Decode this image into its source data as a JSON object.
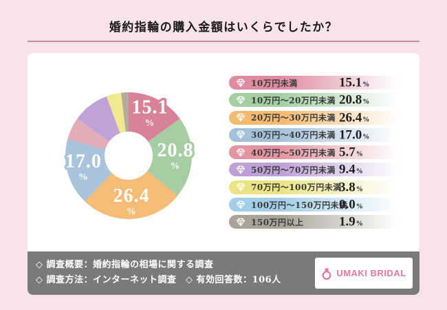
{
  "header": {
    "title": "婚約指輪の購入金額はいくらでしたか？"
  },
  "chart_data": {
    "type": "pie",
    "subtype": "donut",
    "title": "婚約指輪の購入金額はいくらでしたか？",
    "unit": "%",
    "start_angle_deg": 0,
    "direction": "clockwise",
    "categories": [
      "10万円未満",
      "10万円～20万円未満",
      "20万円～30万円未満",
      "30万円～40万円未満",
      "40万円～50万円未満",
      "50万円～70万円未満",
      "70万円～100万円未満",
      "100万円～150万円未満",
      "150万円以上"
    ],
    "values": [
      15.1,
      20.8,
      26.4,
      17.0,
      5.7,
      9.4,
      3.8,
      0.0,
      1.9
    ],
    "slice_colors": [
      "#d88298",
      "#a7cda4",
      "#f4bc77",
      "#a8c3db",
      "#e3adb7",
      "#bfa3d7",
      "#efe98f",
      "#a5d2e8",
      "#b3ac9c"
    ],
    "legend_colors": [
      "#df8ca1",
      "#a3cfa3",
      "#f3ba70",
      "#a5c1da",
      "#e495a1",
      "#bda0d5",
      "#ebe484",
      "#a2cfe7",
      "#a9a497"
    ],
    "slice_label_min_value": 15,
    "slice_label_color": "#ffffff",
    "legend_position": "right",
    "legend_icon": "diamond-gem-icon"
  },
  "footer": {
    "line1": "◇ 調査概要：婚約指輪の相場に関する調査",
    "line2": "◇ 調査方法：インターネット調査　◇ 有効回答数：106人",
    "logo_text": "UMAKI BRIDAL",
    "logo_icon": "ring-icon",
    "logo_color": "#e5769f"
  },
  "colors": {
    "page_background": "#f8e2eb",
    "card_background": "#ffffff",
    "divider": "#d48ea1",
    "footer_background": "#7b7a7a",
    "title_text": "#1a1a1a",
    "legend_text": "#3b3b3b",
    "percent_text": "#1e1e1e",
    "footer_text": "#ffffff"
  }
}
